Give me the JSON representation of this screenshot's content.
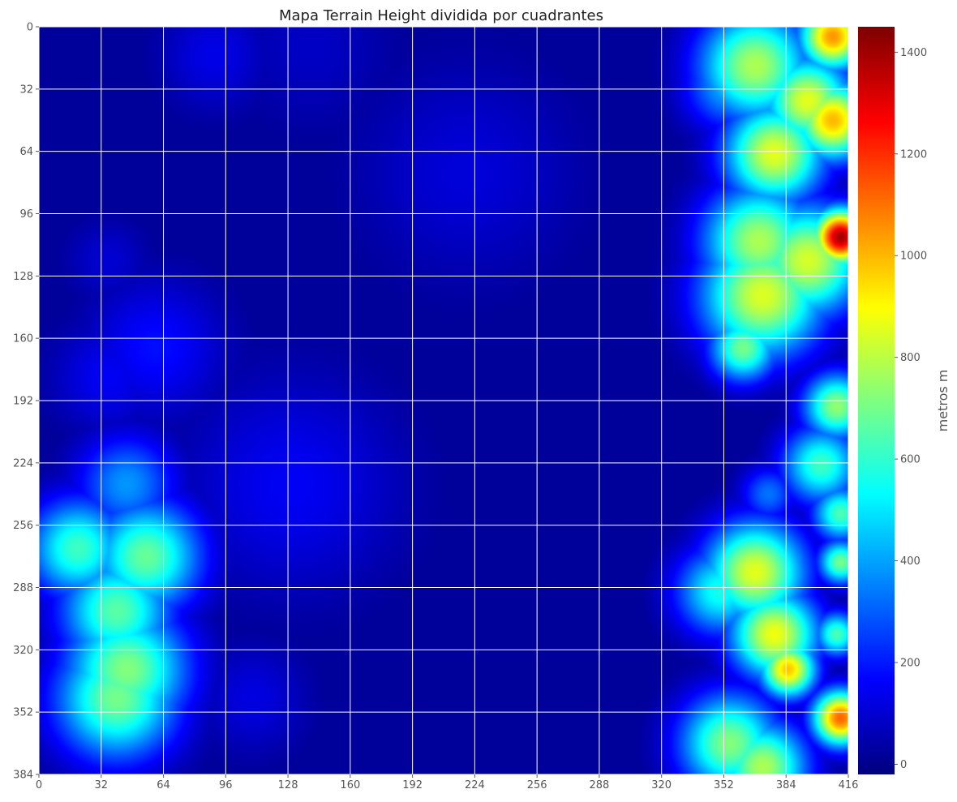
{
  "chart_data": {
    "type": "heatmap",
    "title": "Mapa Terrain  Height dividida por cuadrantes",
    "xlabel": "",
    "ylabel": "",
    "colorbar_label": "metros m",
    "colormap": "jet",
    "grid": true,
    "grid_color": "#ffffff",
    "xlim": [
      0,
      416
    ],
    "ylim": [
      384,
      0
    ],
    "value_range": [
      -20,
      1450
    ],
    "x_ticks": [
      0,
      32,
      64,
      96,
      128,
      160,
      192,
      224,
      256,
      288,
      320,
      352,
      384,
      416
    ],
    "y_ticks": [
      0,
      32,
      64,
      96,
      128,
      160,
      192,
      224,
      256,
      288,
      320,
      352,
      384
    ],
    "colorbar_ticks": [
      0,
      200,
      400,
      600,
      800,
      1000,
      1200,
      1400
    ],
    "base_height": 20,
    "height_features": [
      {
        "x": 408,
        "y": 5,
        "r": 12,
        "h": 1050
      },
      {
        "x": 368,
        "y": 20,
        "r": 20,
        "h": 780
      },
      {
        "x": 395,
        "y": 38,
        "r": 16,
        "h": 860
      },
      {
        "x": 408,
        "y": 48,
        "r": 14,
        "h": 1000
      },
      {
        "x": 378,
        "y": 65,
        "r": 18,
        "h": 860
      },
      {
        "x": 355,
        "y": 30,
        "r": 16,
        "h": 430
      },
      {
        "x": 412,
        "y": 108,
        "r": 10,
        "h": 1400
      },
      {
        "x": 370,
        "y": 110,
        "r": 20,
        "h": 780
      },
      {
        "x": 395,
        "y": 120,
        "r": 20,
        "h": 840
      },
      {
        "x": 372,
        "y": 138,
        "r": 22,
        "h": 850
      },
      {
        "x": 362,
        "y": 165,
        "r": 12,
        "h": 700
      },
      {
        "x": 410,
        "y": 195,
        "r": 12,
        "h": 740
      },
      {
        "x": 402,
        "y": 225,
        "r": 14,
        "h": 620
      },
      {
        "x": 412,
        "y": 250,
        "r": 10,
        "h": 640
      },
      {
        "x": 375,
        "y": 240,
        "r": 10,
        "h": 330
      },
      {
        "x": 368,
        "y": 280,
        "r": 18,
        "h": 860
      },
      {
        "x": 350,
        "y": 290,
        "r": 16,
        "h": 560
      },
      {
        "x": 378,
        "y": 312,
        "r": 16,
        "h": 880
      },
      {
        "x": 385,
        "y": 330,
        "r": 10,
        "h": 980
      },
      {
        "x": 412,
        "y": 275,
        "r": 8,
        "h": 700
      },
      {
        "x": 412,
        "y": 355,
        "r": 10,
        "h": 1120
      },
      {
        "x": 410,
        "y": 312,
        "r": 8,
        "h": 640
      },
      {
        "x": 355,
        "y": 368,
        "r": 18,
        "h": 720
      },
      {
        "x": 372,
        "y": 380,
        "r": 16,
        "h": 780
      },
      {
        "x": 20,
        "y": 268,
        "r": 18,
        "h": 620
      },
      {
        "x": 55,
        "y": 272,
        "r": 20,
        "h": 680
      },
      {
        "x": 40,
        "y": 300,
        "r": 20,
        "h": 660
      },
      {
        "x": 45,
        "y": 330,
        "r": 22,
        "h": 720
      },
      {
        "x": 40,
        "y": 345,
        "r": 22,
        "h": 700
      },
      {
        "x": 45,
        "y": 235,
        "r": 18,
        "h": 380
      },
      {
        "x": 60,
        "y": 165,
        "r": 25,
        "h": 180
      },
      {
        "x": 35,
        "y": 180,
        "r": 20,
        "h": 150
      },
      {
        "x": 130,
        "y": 235,
        "r": 40,
        "h": 150
      },
      {
        "x": 220,
        "y": 75,
        "r": 40,
        "h": 110
      },
      {
        "x": 90,
        "y": 15,
        "r": 20,
        "h": 130
      },
      {
        "x": 140,
        "y": 10,
        "r": 30,
        "h": 80
      },
      {
        "x": 35,
        "y": 120,
        "r": 15,
        "h": 100
      },
      {
        "x": 110,
        "y": 345,
        "r": 20,
        "h": 120
      }
    ]
  }
}
